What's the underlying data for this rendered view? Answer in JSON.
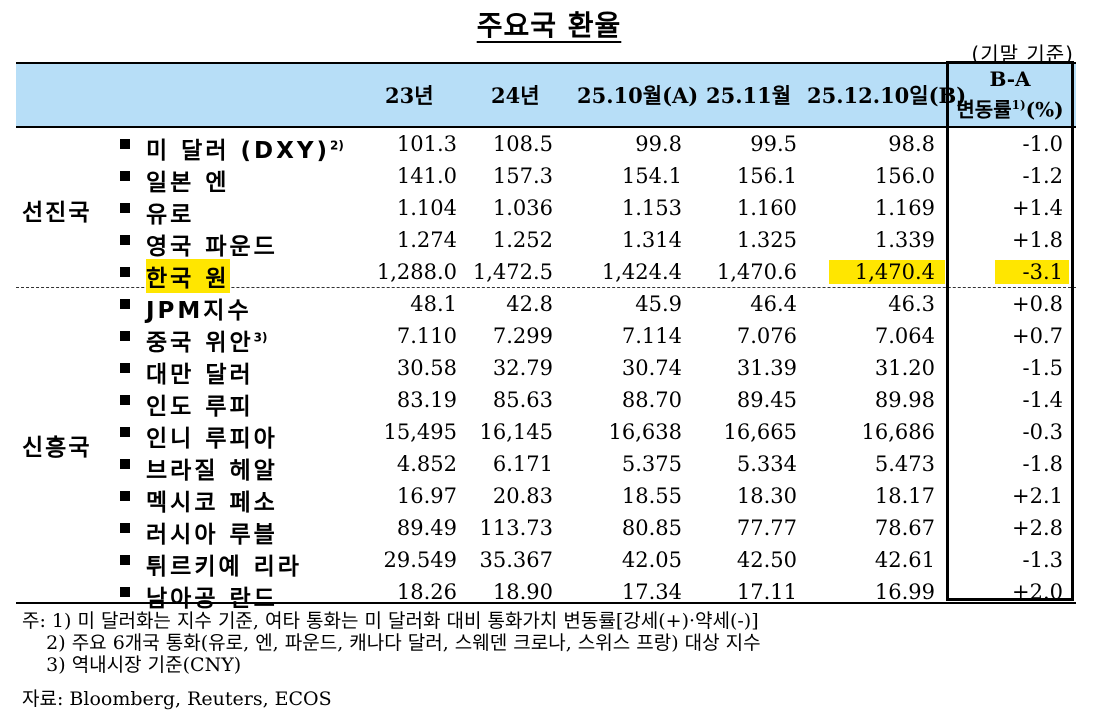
{
  "title": "주요국 환율",
  "basis": "(기말 기준)",
  "columns": [
    "23년",
    "24년",
    "25.10월(A)",
    "25.11월",
    "25.12.10일(B)"
  ],
  "ba_header": {
    "line1": "B-A",
    "line2": "변동률",
    "sup": "1)",
    "unit": "(%)"
  },
  "groups": {
    "advanced": "선진국",
    "emerging": "신흥국"
  },
  "rows": [
    {
      "name": "미 달러 (DXY)",
      "sup": "2)",
      "values": [
        "101.3",
        "108.5",
        "99.8",
        "99.5",
        "98.8"
      ],
      "change": "-1.0"
    },
    {
      "name": "일본 엔",
      "sup": "",
      "values": [
        "141.0",
        "157.3",
        "154.1",
        "156.1",
        "156.0"
      ],
      "change": "-1.2"
    },
    {
      "name": "유로",
      "sup": "",
      "values": [
        "1.104",
        "1.036",
        "1.153",
        "1.160",
        "1.169"
      ],
      "change": "+1.4"
    },
    {
      "name": "영국 파운드",
      "sup": "",
      "values": [
        "1.274",
        "1.252",
        "1.314",
        "1.325",
        "1.339"
      ],
      "change": "+1.8"
    },
    {
      "name": "한국 원",
      "sup": "",
      "values": [
        "1,288.0",
        "1,472.5",
        "1,424.4",
        "1,470.6",
        "1,470.4"
      ],
      "change": "-3.1",
      "highlight": true
    },
    {
      "name": "JPM지수",
      "sup": "",
      "values": [
        "48.1",
        "42.8",
        "45.9",
        "46.4",
        "46.3"
      ],
      "change": "+0.8"
    },
    {
      "name": "중국 위안",
      "sup": "3)",
      "values": [
        "7.110",
        "7.299",
        "7.114",
        "7.076",
        "7.064"
      ],
      "change": "+0.7"
    },
    {
      "name": "대만 달러",
      "sup": "",
      "values": [
        "30.58",
        "32.79",
        "30.74",
        "31.39",
        "31.20"
      ],
      "change": "-1.5"
    },
    {
      "name": "인도 루피",
      "sup": "",
      "values": [
        "83.19",
        "85.63",
        "88.70",
        "89.45",
        "89.98"
      ],
      "change": "-1.4"
    },
    {
      "name": "인니 루피아",
      "sup": "",
      "values": [
        "15,495",
        "16,145",
        "16,638",
        "16,665",
        "16,686"
      ],
      "change": "-0.3"
    },
    {
      "name": "브라질 헤알",
      "sup": "",
      "values": [
        "4.852",
        "6.171",
        "5.375",
        "5.334",
        "5.473"
      ],
      "change": "-1.8"
    },
    {
      "name": "멕시코 페소",
      "sup": "",
      "values": [
        "16.97",
        "20.83",
        "18.55",
        "18.30",
        "18.17"
      ],
      "change": "+2.1"
    },
    {
      "name": "러시아 루블",
      "sup": "",
      "values": [
        "89.49",
        "113.73",
        "80.85",
        "77.77",
        "78.67"
      ],
      "change": "+2.8"
    },
    {
      "name": "튀르키예 리라",
      "sup": "",
      "values": [
        "29.549",
        "35.367",
        "42.05",
        "42.50",
        "42.61"
      ],
      "change": "-1.3"
    },
    {
      "name": "남아공 란드",
      "sup": "",
      "values": [
        "18.26",
        "18.90",
        "17.34",
        "17.11",
        "16.99"
      ],
      "change": "+2.0"
    }
  ],
  "notes": {
    "line1": "주: 1) 미 달러화는 지수 기준, 여타 통화는 미 달러화 대비 통화가치 변동률[강세(+)·약세(-)]",
    "line2": "    2) 주요 6개국 통화(유로, 엔, 파운드, 캐나다 달러, 스웨덴 크로나, 스위스 프랑) 대상 지수",
    "line3": "    3) 역내시장 기준(CNY)"
  },
  "source": "자료: Bloomberg, Reuters, ECOS"
}
